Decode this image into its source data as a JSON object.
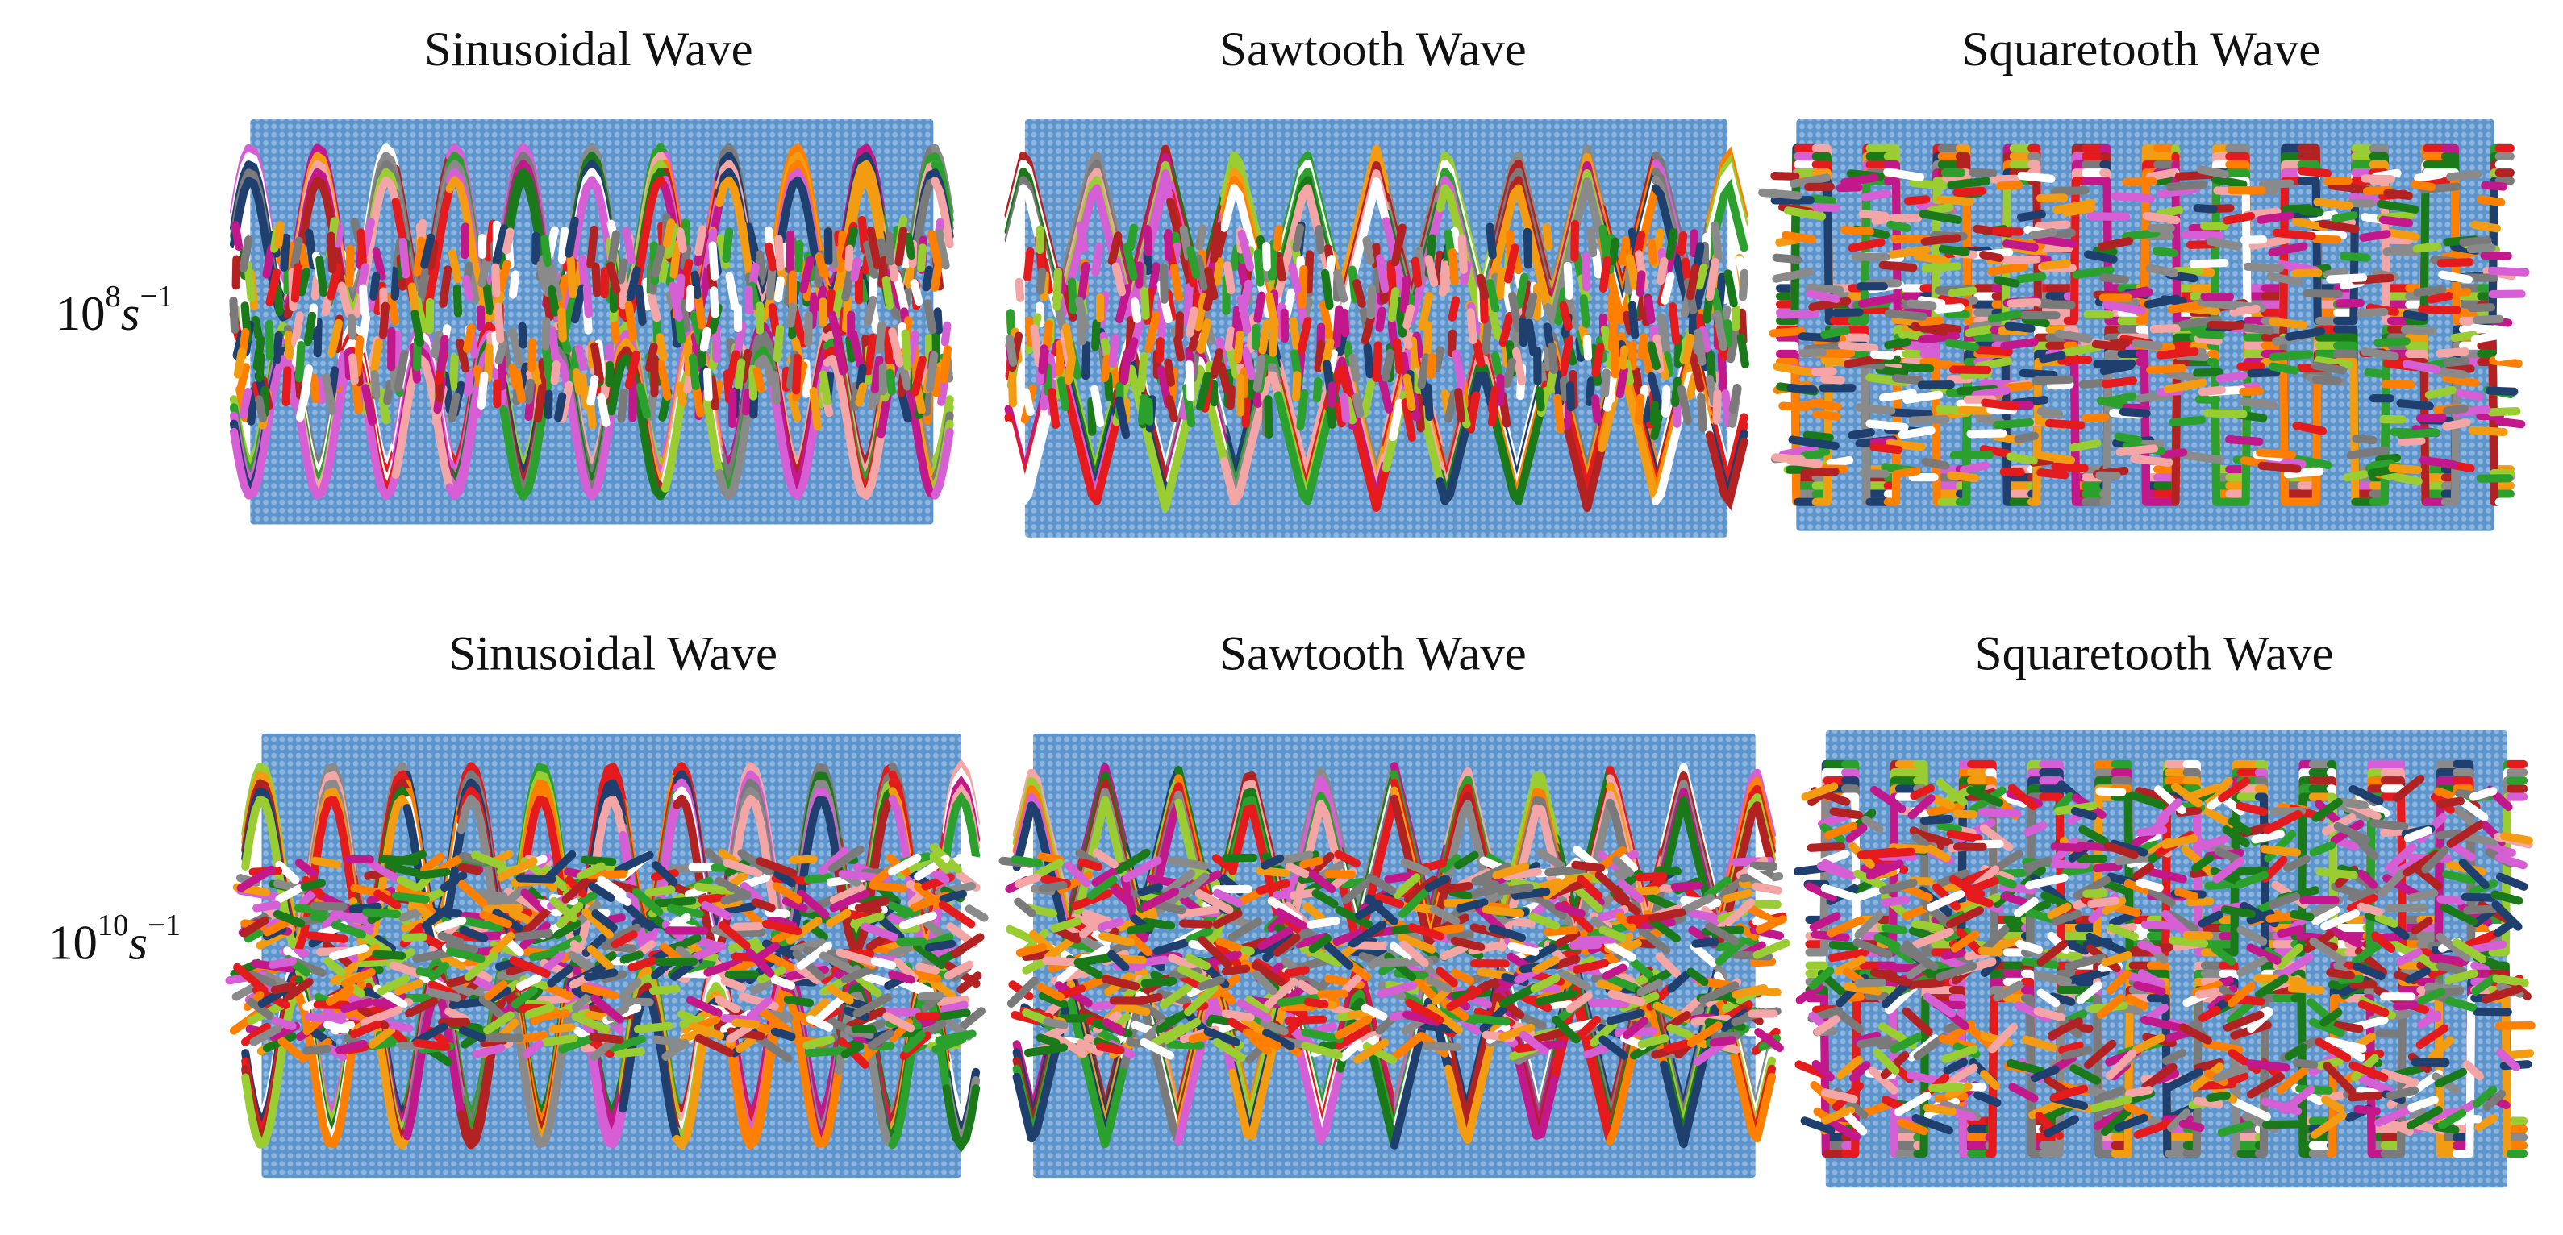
{
  "rows": [
    {
      "label": {
        "base": "10",
        "exp": "8",
        "unit": "s",
        "unit_exp": "−1"
      },
      "panels": [
        {
          "title": "Sinusoidal Wave"
        },
        {
          "title": "Sawtooth Wave"
        },
        {
          "title": "Squaretooth Wave"
        }
      ]
    },
    {
      "label": {
        "base": "10",
        "exp": "10",
        "unit": "s",
        "unit_exp": "−1"
      },
      "panels": [
        {
          "title": "Sinusoidal Wave"
        },
        {
          "title": "Sawtooth Wave"
        },
        {
          "title": "Squaretooth Wave"
        }
      ]
    }
  ]
}
